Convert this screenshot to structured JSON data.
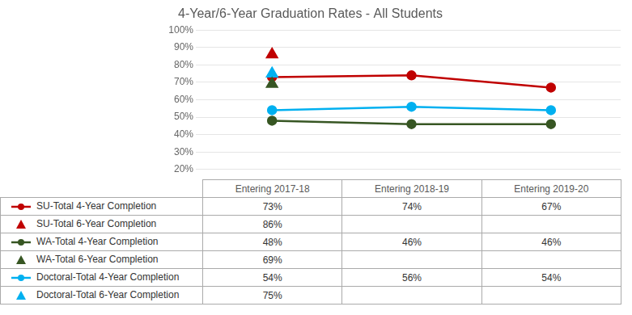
{
  "chart_data": {
    "type": "line",
    "title": "4-Year/6-Year Graduation Rates - All Students",
    "categories": [
      "Entering 2017-18",
      "Entering 2018-19",
      "Entering 2019-20"
    ],
    "series": [
      {
        "name": "SU-Total 4-Year Completion",
        "color": "#c00000",
        "marker": "circle",
        "line_style": "solid",
        "values": [
          73,
          74,
          67
        ],
        "value_labels": [
          "73%",
          "74%",
          "67%"
        ]
      },
      {
        "name": "SU-Total 6-Year Completion",
        "type": "scatter",
        "color": "#c00000",
        "marker": "triangle",
        "values": [
          86,
          null,
          null
        ],
        "value_labels": [
          "86%",
          null,
          null
        ]
      },
      {
        "name": "WA-Total 4-Year Completion",
        "color": "#375623",
        "marker": "circle",
        "line_style": "solid",
        "values": [
          48,
          46,
          46
        ],
        "value_labels": [
          "48%",
          "46%",
          "46%"
        ]
      },
      {
        "name": "WA-Total 6-Year Completion",
        "type": "scatter",
        "color": "#375623",
        "marker": "triangle",
        "values": [
          69,
          null,
          null
        ],
        "value_labels": [
          "69%",
          null,
          null
        ]
      },
      {
        "name": "Doctoral-Total 4-Year Completion",
        "color": "#00b0f0",
        "marker": "circle",
        "line_style": "solid",
        "values": [
          54,
          56,
          54
        ],
        "value_labels": [
          "54%",
          "56%",
          "54%"
        ]
      },
      {
        "name": "Doctoral-Total 6-Year Completion",
        "type": "scatter",
        "color": "#00b0f0",
        "marker": "triangle",
        "values": [
          75,
          null,
          null
        ],
        "value_labels": [
          "75%",
          null,
          null
        ]
      }
    ],
    "ylim": [
      20,
      100
    ],
    "yticks": [
      {
        "value": 20,
        "label": "20%"
      },
      {
        "value": 30,
        "label": "30%"
      },
      {
        "value": 40,
        "label": "40%"
      },
      {
        "value": 50,
        "label": "50%"
      },
      {
        "value": 60,
        "label": "60%"
      },
      {
        "value": 70,
        "label": "70%"
      },
      {
        "value": 80,
        "label": "80%"
      },
      {
        "value": 90,
        "label": "90%"
      },
      {
        "value": 100,
        "label": "100%"
      }
    ],
    "grid": "y",
    "tick_labels": "y"
  }
}
